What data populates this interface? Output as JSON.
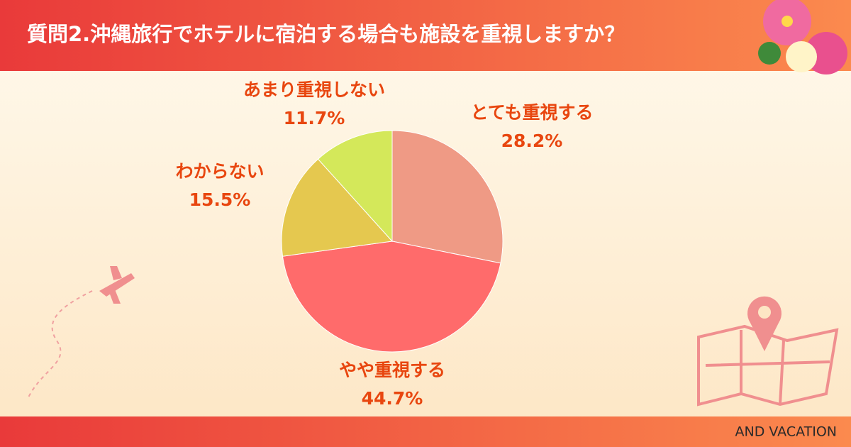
{
  "chart_data": {
    "type": "pie",
    "title": "質問2.沖縄旅行でホテルに宿泊する場合も施設を重視しますか？",
    "categories": [
      "とても重視する",
      "やや重視する",
      "わからない",
      "あまり重視しない"
    ],
    "values": [
      28.2,
      44.7,
      15.5,
      11.7
    ],
    "value_labels": [
      "28.2%",
      "44.7%",
      "15.5%",
      "11.7%"
    ],
    "colors": [
      "#ef9a85",
      "#ff6b6b",
      "#e5c84f",
      "#d4e85a"
    ],
    "footer": "AND VACATION"
  }
}
